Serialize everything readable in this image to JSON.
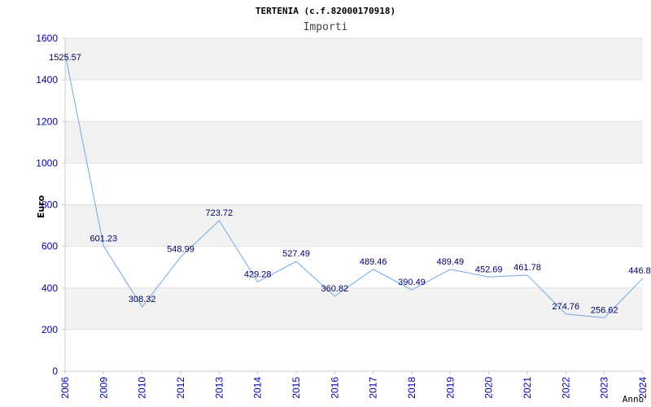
{
  "chart_data": {
    "type": "line",
    "title": "TERTENIA (c.f.82000170918)",
    "subtitle": "Importi",
    "xlabel": "Anno",
    "ylabel": "Euro",
    "categories": [
      "2006",
      "2009",
      "2010",
      "2012",
      "2013",
      "2014",
      "2015",
      "2016",
      "2017",
      "2018",
      "2019",
      "2020",
      "2021",
      "2022",
      "2023",
      "2024"
    ],
    "series": [
      {
        "values": [
          1525.57,
          601.23,
          308.32,
          548.99,
          723.72,
          429.28,
          527.49,
          360.82,
          489.46,
          390.49,
          489.49,
          452.69,
          461.78,
          274.76,
          256.62,
          446.8
        ]
      }
    ],
    "data_labels": [
      "1525.57",
      "601.23",
      "308.32",
      "548.99",
      "723.72",
      "429.28",
      "527.49",
      "360.82",
      "489.46",
      "390.49",
      "489.49",
      "452.69",
      "461.78",
      "274.76",
      "256.62",
      "446.8"
    ],
    "ylim": [
      0,
      1600
    ],
    "yticks": [
      "0",
      "200",
      "400",
      "600",
      "800",
      "1000",
      "1200",
      "1400",
      "1600"
    ],
    "grid": "horizontal alternating bands",
    "colors": {
      "line": "#6fa8e6",
      "band": "#f2f2f2",
      "tick_text": "#0000aa",
      "label_text": "#000066"
    }
  }
}
